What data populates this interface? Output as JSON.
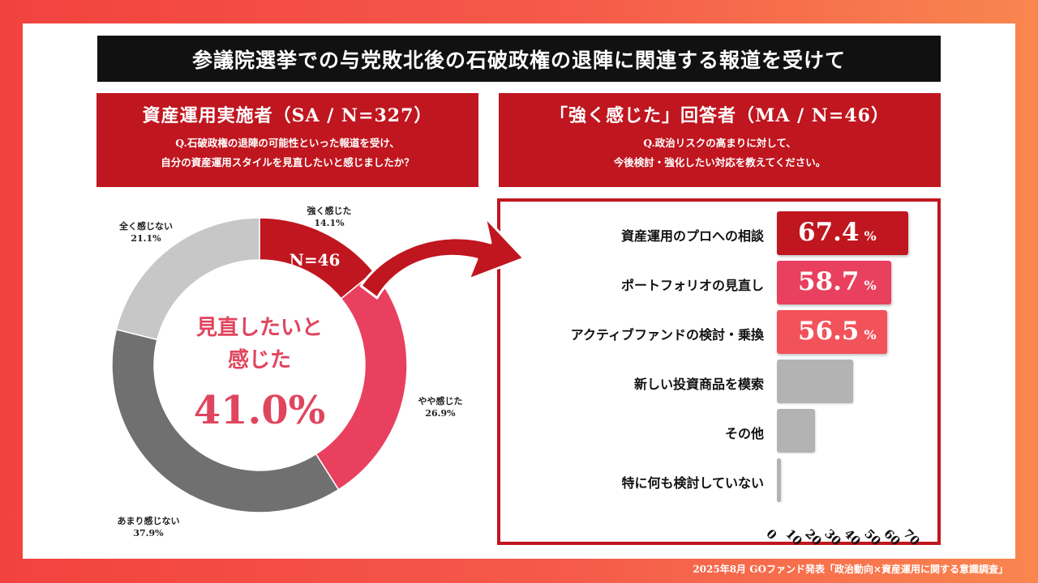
{
  "title": "参議院選挙での与党敗北後の石破政権の退陣に関連する報道を受けて",
  "left_panel": {
    "heading": "資産運用実施者（SA / N=327）",
    "question_line1": "Q.石破政権の退陣の可能性といった報道を受け、",
    "question_line2": "自分の資産運用スタイルを見直したいと感じましたか？"
  },
  "right_panel": {
    "heading": "「強く感じた」回答者（MA / N=46）",
    "question_line1": "Q.政治リスクの高まりに対して、",
    "question_line2": "今後検討・強化したい対応を教えてください。"
  },
  "donut_center": {
    "line1": "見直したいと",
    "line2": "感じた",
    "value": "41.0%"
  },
  "n_label": "N=46",
  "footer": "2025年8月 GOファンド発表「政治動向×資産運用に関する意識調査」",
  "colors": {
    "strong": "#c0161f",
    "somewhat": "#e8405e",
    "rarely": "#707070",
    "not_at_all": "#c7c7c7",
    "bar_1": "#c0161f",
    "bar_2": "#e8405e",
    "bar_3": "#f25259",
    "bar_gray": "#b3b3b3"
  },
  "chart_data": [
    {
      "type": "pie",
      "variant": "donut",
      "slices": [
        {
          "label": "強く感じた",
          "value": 14.1,
          "value_label": "14.1%"
        },
        {
          "label": "やや感じた",
          "value": 26.9,
          "value_label": "26.9%"
        },
        {
          "label": "あまり感じない",
          "value": 37.9,
          "value_label": "37.9%"
        },
        {
          "label": "全く感じない",
          "value": 21.1,
          "value_label": "21.1%"
        }
      ]
    },
    {
      "type": "bar",
      "orientation": "horizontal",
      "categories": [
        "資産運用のプロへの相談",
        "ポートフォリオの見直し",
        "アクティブファンドの検討・乗換",
        "新しい投資商品を模索",
        "その他",
        "特に何も検討していない"
      ],
      "values": [
        67.4,
        58.7,
        56.5,
        39.1,
        19.6,
        2.2
      ],
      "value_labels": [
        "67.4",
        "58.7",
        "56.5",
        "",
        "",
        ""
      ],
      "unit": "%",
      "xlim": [
        0,
        70
      ],
      "ticks": [
        "0",
        "10",
        "20",
        "30",
        "40",
        "50",
        "60",
        "70"
      ]
    }
  ]
}
